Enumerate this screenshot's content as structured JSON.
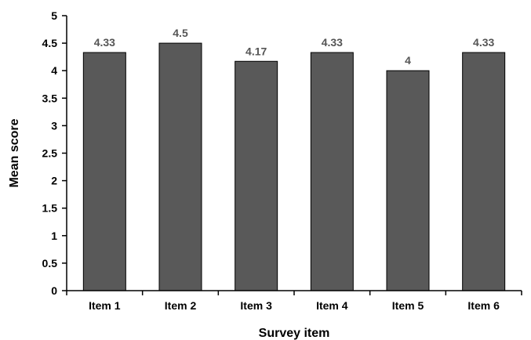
{
  "chart_data": {
    "type": "bar",
    "title": "",
    "xlabel": "Survey item",
    "ylabel": "Mean score",
    "categories": [
      "Item 1",
      "Item 2",
      "Item 3",
      "Item 4",
      "Item 5",
      "Item 6"
    ],
    "values": [
      4.33,
      4.5,
      4.17,
      4.33,
      4,
      4.33
    ],
    "data_labels": [
      "4.33",
      "4.5",
      "4.17",
      "4.33",
      "4",
      "4.33"
    ],
    "ylim": [
      0,
      5
    ],
    "yticks": [
      "0",
      "0.5",
      "1",
      "1.5",
      "2",
      "2.5",
      "3",
      "3.5",
      "4",
      "4.5",
      "5"
    ],
    "grid": false,
    "legend": "none",
    "colors": {
      "bar_fill": "#595959",
      "bar_stroke": "#000000",
      "data_label": "#555555",
      "axis": "#000000"
    }
  }
}
